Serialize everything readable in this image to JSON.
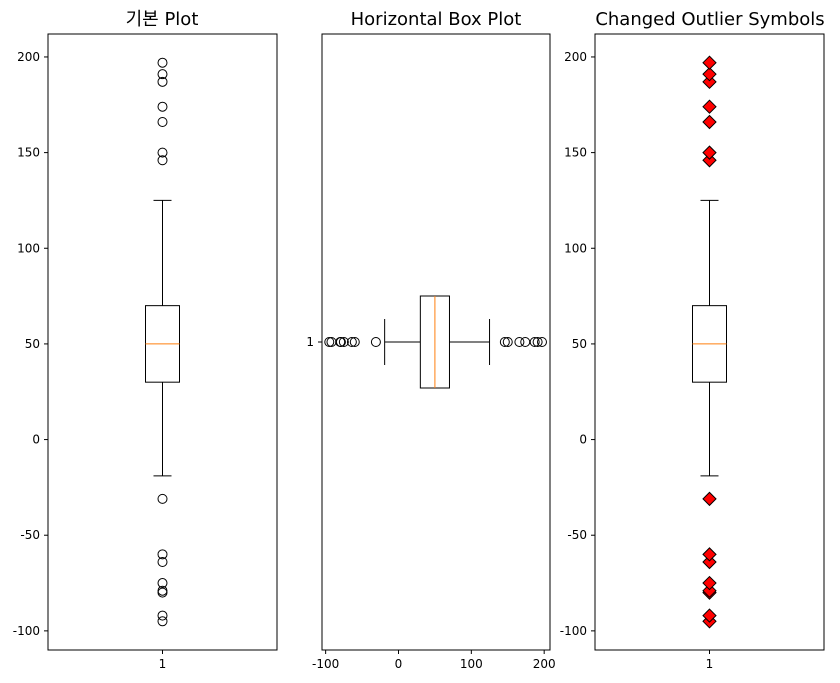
{
  "chart_data": [
    {
      "type": "boxplot",
      "orientation": "vertical",
      "title": "기본 Plot",
      "categories": [
        "1"
      ],
      "ylim": [
        -110,
        212
      ],
      "yticks": [
        -100,
        -50,
        0,
        50,
        100,
        150,
        200
      ],
      "ytick_labels": [
        "-100",
        "-50",
        "0",
        "50",
        "100",
        "150",
        "200"
      ],
      "xtick_labels": [
        "1"
      ],
      "stats": {
        "whisker_low": -19,
        "q1": 30,
        "median": 50,
        "q3": 70,
        "whisker_high": 125
      },
      "outliers": [
        -95,
        -92,
        -80,
        -79,
        -75,
        -64,
        -60,
        -31,
        146,
        150,
        166,
        174,
        187,
        191,
        197
      ],
      "outlier_marker": {
        "shape": "circle",
        "fill": "none",
        "edge": "#000000"
      },
      "box_color": "#000000",
      "median_color": "#ff7f0e"
    },
    {
      "type": "boxplot",
      "orientation": "horizontal",
      "title": "Horizontal Box Plot",
      "categories": [
        "1"
      ],
      "xlim": [
        -105,
        208
      ],
      "xticks": [
        -100,
        0,
        100,
        200
      ],
      "xtick_labels": [
        "-100",
        "0",
        "100",
        "200"
      ],
      "ytick_labels": [
        "1"
      ],
      "stats": {
        "whisker_low": -19,
        "q1": 30,
        "median": 50,
        "q3": 70,
        "whisker_high": 125
      },
      "outliers": [
        -95,
        -92,
        -80,
        -79,
        -75,
        -64,
        -60,
        -31,
        146,
        150,
        166,
        174,
        187,
        191,
        197
      ],
      "outlier_marker": {
        "shape": "circle",
        "fill": "none",
        "edge": "#000000"
      },
      "box_color": "#000000",
      "median_color": "#ff7f0e"
    },
    {
      "type": "boxplot",
      "orientation": "vertical",
      "title": "Changed Outlier Symbols",
      "categories": [
        "1"
      ],
      "ylim": [
        -110,
        212
      ],
      "yticks": [
        -100,
        -50,
        0,
        50,
        100,
        150,
        200
      ],
      "ytick_labels": [
        "-100",
        "-50",
        "0",
        "50",
        "100",
        "150",
        "200"
      ],
      "xtick_labels": [
        "1"
      ],
      "stats": {
        "whisker_low": -19,
        "q1": 30,
        "median": 50,
        "q3": 70,
        "whisker_high": 125
      },
      "outliers": [
        -95,
        -92,
        -80,
        -79,
        -75,
        -64,
        -60,
        -31,
        146,
        150,
        166,
        174,
        187,
        191,
        197
      ],
      "outlier_marker": {
        "shape": "diamond",
        "fill": "#ff0000",
        "edge": "#000000"
      },
      "box_color": "#000000",
      "median_color": "#ff7f0e"
    }
  ]
}
